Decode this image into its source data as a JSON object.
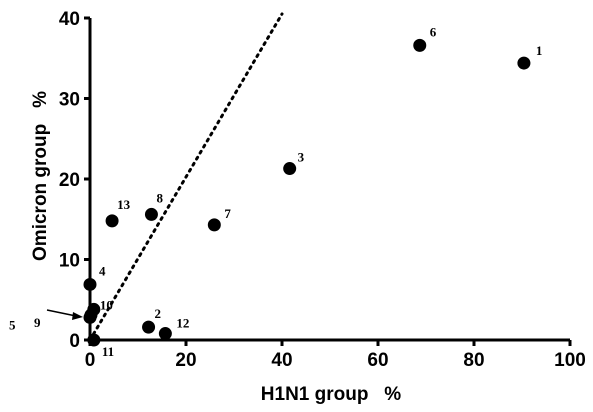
{
  "chart_data": {
    "type": "scatter",
    "title": "",
    "xlabel": "H1N1 group   %",
    "ylabel": "Omicron group   %",
    "xlim": [
      0,
      100
    ],
    "ylim": [
      0,
      40
    ],
    "x_ticks": [
      "0",
      "20",
      "40",
      "60",
      "80",
      "100"
    ],
    "y_ticks": [
      "0",
      "10",
      "20",
      "30",
      "40"
    ],
    "grid": false,
    "legend": "none",
    "marker_color": "#000000",
    "points": [
      {
        "label": "1",
        "x": 90.4,
        "y": 34.4
      },
      {
        "label": "2",
        "x": 12.2,
        "y": 1.6
      },
      {
        "label": "3",
        "x": 41.6,
        "y": 21.3
      },
      {
        "label": "4",
        "x": 0.0,
        "y": 6.9
      },
      {
        "label": "5",
        "x": 0.0,
        "y": 2.8
      },
      {
        "label": "6",
        "x": 68.7,
        "y": 36.6
      },
      {
        "label": "7",
        "x": 25.9,
        "y": 14.3
      },
      {
        "label": "8",
        "x": 12.8,
        "y": 15.6
      },
      {
        "label": "9",
        "x": 0.2,
        "y": 3.1
      },
      {
        "label": "10",
        "x": 0.8,
        "y": 3.8
      },
      {
        "label": "11",
        "x": 0.8,
        "y": 0.0
      },
      {
        "label": "12",
        "x": 15.7,
        "y": 0.8
      },
      {
        "label": "13",
        "x": 4.6,
        "y": 14.8
      }
    ],
    "reference_line": {
      "style": "dotted",
      "x": [
        0,
        40
      ],
      "y": [
        0,
        40.5
      ]
    }
  }
}
